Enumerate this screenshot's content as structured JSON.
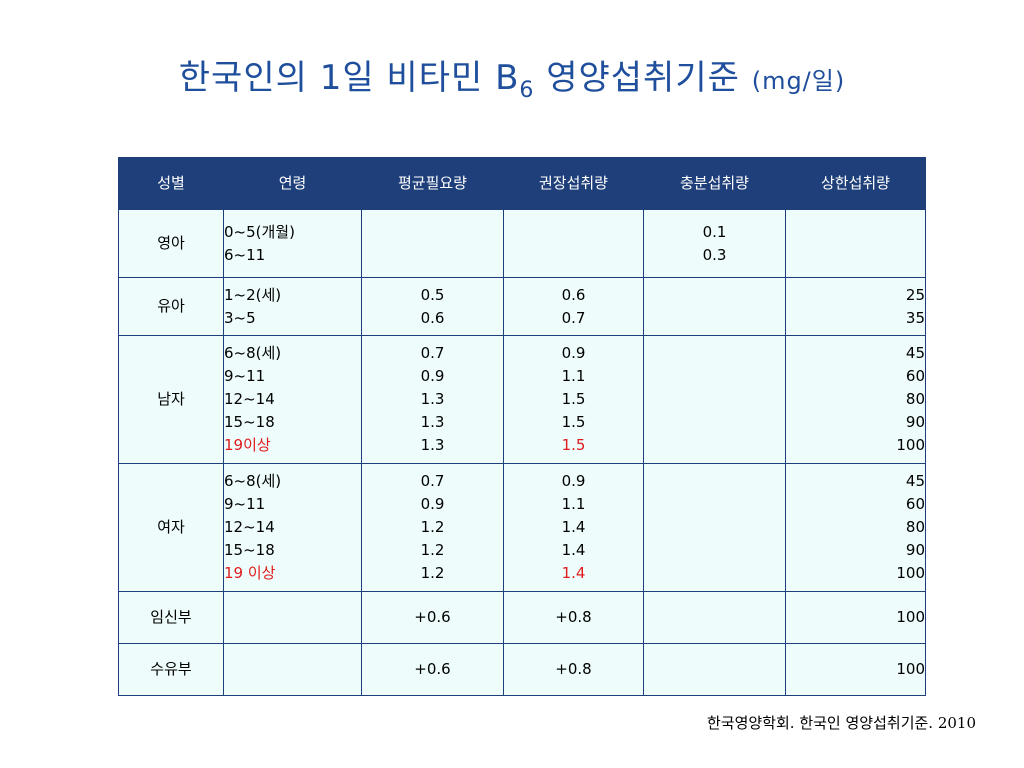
{
  "title": {
    "main": "한국인의 1일 비타민 B",
    "sub": "6",
    "rest": " 영양섭취기준 ",
    "unit": "(mg/일)"
  },
  "table": {
    "headers": [
      "성별",
      "연령",
      "평균필요량",
      "권장섭취량",
      "충분섭취량",
      "상한섭취량"
    ],
    "rows": [
      {
        "gender": "영아",
        "age": [
          "0~5(개월)",
          "6~11"
        ],
        "ear": [],
        "rni": [],
        "ai": [
          "0.1",
          "0.3"
        ],
        "ul": []
      },
      {
        "gender": "유아",
        "age": [
          "1~2(세)",
          "3~5"
        ],
        "ear": [
          "0.5",
          "0.6"
        ],
        "rni": [
          "0.6",
          "0.7"
        ],
        "ai": [],
        "ul": [
          "25",
          "35"
        ]
      },
      {
        "gender": "남자",
        "age": [
          "6~8(세)",
          "9~11",
          "12~14",
          "15~18",
          "19이상"
        ],
        "ear": [
          "0.7",
          "0.9",
          "1.3",
          "1.3",
          "1.3"
        ],
        "rni": [
          "0.9",
          "1.1",
          "1.5",
          "1.5",
          "1.5"
        ],
        "ai": [],
        "ul": [
          "45",
          "60",
          "80",
          "90",
          "100"
        ]
      },
      {
        "gender": "여자",
        "age": [
          "6~8(세)",
          "9~11",
          "12~14",
          "15~18",
          "19 이상"
        ],
        "ear": [
          "0.7",
          "0.9",
          "1.2",
          "1.2",
          "1.2"
        ],
        "rni": [
          "0.9",
          "1.1",
          "1.4",
          "1.4",
          "1.4"
        ],
        "ai": [],
        "ul": [
          "45",
          "60",
          "80",
          "90",
          "100"
        ]
      },
      {
        "gender": "임신부",
        "age": [],
        "ear": [
          "+0.6"
        ],
        "rni": [
          "+0.8"
        ],
        "ai": [],
        "ul": [
          "100"
        ]
      },
      {
        "gender": "수유부",
        "age": [],
        "ear": [
          "+0.6"
        ],
        "rni": [
          "+0.8"
        ],
        "ai": [],
        "ul": [
          "100"
        ]
      }
    ]
  },
  "citation": "한국영양학회. 한국인 영양섭취기준. 2010",
  "colors": {
    "title": "#1f4e9c",
    "header_bg": "#1f3f7a",
    "cell_bg": "#eefcfc",
    "highlight": "#e01b1b"
  }
}
